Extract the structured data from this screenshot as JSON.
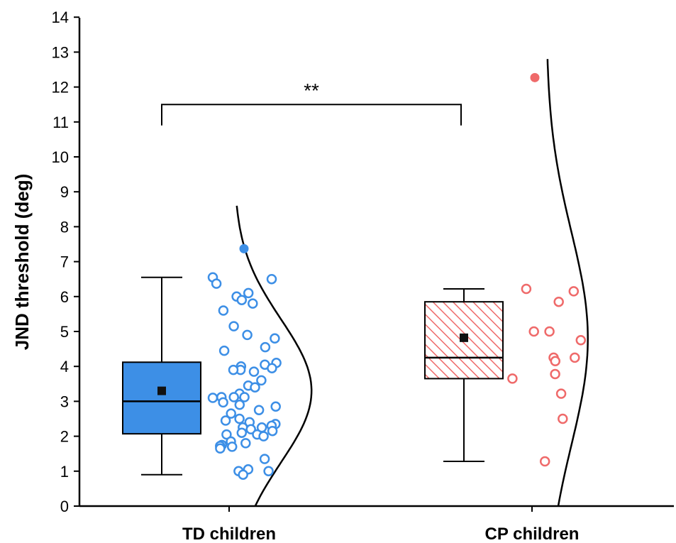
{
  "chart_data": {
    "type": "box-violin-scatter",
    "title": "",
    "xlabel": "",
    "ylabel": "JND threshold (deg)",
    "ylim": [
      0,
      14
    ],
    "yticks": [
      "0",
      "1",
      "2",
      "3",
      "4",
      "5",
      "6",
      "7",
      "8",
      "9",
      "10",
      "11",
      "12",
      "13",
      "14"
    ],
    "grid": false,
    "legend": "none",
    "significance": {
      "label": "**",
      "between": [
        "TD children",
        "CP children"
      ],
      "y": 11.5,
      "drop": 10.9
    },
    "groups": [
      {
        "category": "TD children",
        "color": "#3d8fe6",
        "box_fill": "#3d8fe6",
        "box_pattern": "solid",
        "whisker_low": 0.9,
        "q1": 2.07,
        "median": 3.0,
        "q3": 4.12,
        "whisker_high": 6.55,
        "mean": 3.3,
        "outliers": [
          7.37
        ],
        "density_curve": {
          "y_start": 0.0,
          "y_peak": 3.3,
          "y_end": 8.6,
          "width_at_peak": 5.3
        },
        "points": [
          6.55,
          6.5,
          6.37,
          6.1,
          6.0,
          5.9,
          5.8,
          5.6,
          5.15,
          4.9,
          4.8,
          4.55,
          4.45,
          4.1,
          4.05,
          4.0,
          3.95,
          3.9,
          3.85,
          3.9,
          3.6,
          3.45,
          3.4,
          3.22,
          3.12,
          3.12,
          3.12,
          3.1,
          2.97,
          2.9,
          2.85,
          2.75,
          2.65,
          2.5,
          2.45,
          2.4,
          2.35,
          2.3,
          2.25,
          2.25,
          2.2,
          2.15,
          2.1,
          2.05,
          2.05,
          2.0,
          1.85,
          1.8,
          1.75,
          1.72,
          1.7,
          1.65,
          1.35,
          1.05,
          1.0,
          1.0,
          0.9
        ]
      },
      {
        "category": "CP children",
        "color": "#ef6a6a",
        "box_fill": "#ffffff",
        "box_pattern": "hatched",
        "whisker_low": 1.28,
        "q1": 3.65,
        "median": 4.25,
        "q3": 5.85,
        "whisker_high": 6.22,
        "mean": 4.82,
        "outliers": [
          12.27
        ],
        "density_curve": {
          "y_start": 0.0,
          "y_peak": 4.8,
          "y_end": 12.8,
          "width_at_peak": 2.85
        },
        "points": [
          6.22,
          6.15,
          5.85,
          5.0,
          5.0,
          4.75,
          4.25,
          4.25,
          4.15,
          3.78,
          3.65,
          3.22,
          2.5,
          1.28
        ]
      }
    ]
  }
}
